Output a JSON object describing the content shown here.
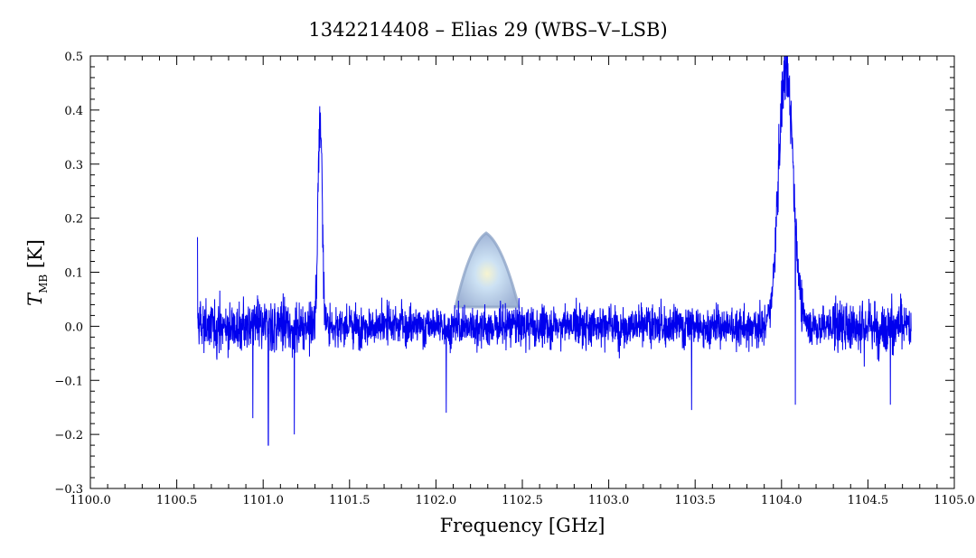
{
  "chart_data": {
    "type": "line",
    "title": "1342214408 – Elias 29 (WBS–V–LSB)",
    "xlabel": "Frequency [GHz]",
    "ylabel_main": "T",
    "ylabel_sub": "MB",
    "ylabel_unit": "[K]",
    "xlim": [
      1100.0,
      1105.0
    ],
    "ylim": [
      -0.3,
      0.5
    ],
    "xticks": [
      1100.0,
      1100.5,
      1101.0,
      1101.5,
      1102.0,
      1102.5,
      1103.0,
      1103.5,
      1104.0,
      1104.5,
      1105.0
    ],
    "xtick_labels": [
      "1100.0",
      "1100.5",
      "1101.0",
      "1101.5",
      "1102.0",
      "1102.5",
      "1103.0",
      "1103.5",
      "1104.0",
      "1104.5",
      "1105.0"
    ],
    "yticks": [
      -0.3,
      -0.2,
      -0.1,
      0.0,
      0.1,
      0.2,
      0.3,
      0.4,
      0.5
    ],
    "ytick_labels": [
      "−0.3",
      "−0.2",
      "−0.1",
      "0.0",
      "0.1",
      "0.2",
      "0.3",
      "0.4",
      "0.5"
    ],
    "grid": false,
    "series": [
      {
        "color": "#0000ee",
        "x_range": [
          1100.62,
          1104.75
        ],
        "noise_rms_left": 0.045,
        "noise_rms_right": 0.035,
        "lines": [
          {
            "center": 1101.33,
            "peak": 0.45
          },
          {
            "center": 1104.01,
            "peak": 0.375
          },
          {
            "center": 1104.05,
            "peak": 0.265
          }
        ],
        "extremes": [
          {
            "x": 1100.62,
            "y": 0.165
          },
          {
            "x": 1101.03,
            "y": -0.22
          },
          {
            "x": 1101.18,
            "y": -0.2
          },
          {
            "x": 1100.94,
            "y": -0.17
          },
          {
            "x": 1102.06,
            "y": -0.16
          },
          {
            "x": 1103.48,
            "y": -0.155
          },
          {
            "x": 1104.63,
            "y": -0.145
          },
          {
            "x": 1104.08,
            "y": -0.145
          }
        ]
      }
    ]
  },
  "watermark": {
    "icon": "herschel-watermark-icon"
  }
}
